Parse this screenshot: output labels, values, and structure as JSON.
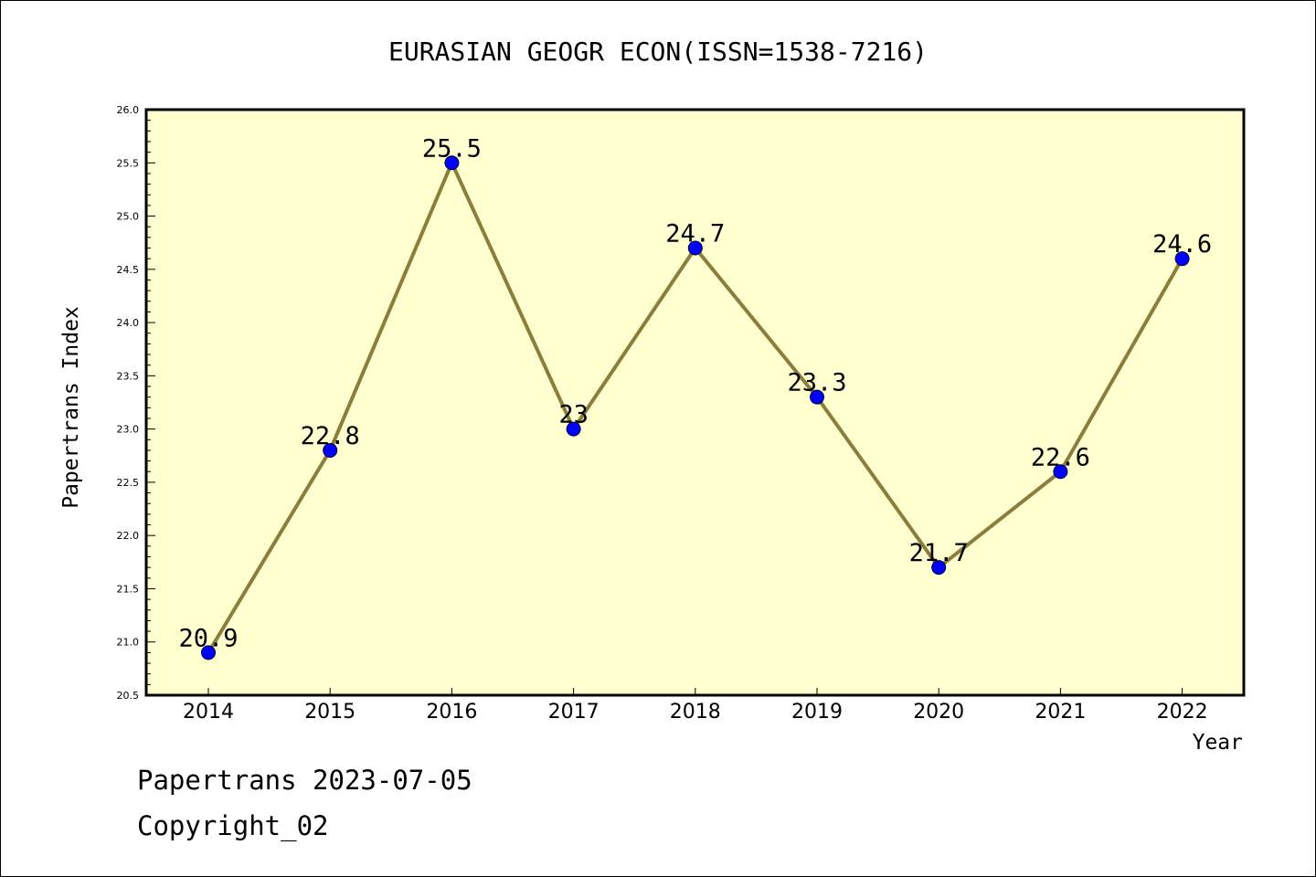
{
  "chart_data": {
    "type": "line",
    "title": "EURASIAN GEOGR ECON(ISSN=1538-7216)",
    "xlabel": "Year",
    "ylabel": "Papertrans Index",
    "categories": [
      "2014",
      "2015",
      "2016",
      "2017",
      "2018",
      "2019",
      "2020",
      "2021",
      "2022"
    ],
    "series": [
      {
        "values": [
          20.9,
          22.8,
          25.5,
          23.0,
          24.7,
          23.3,
          21.7,
          22.6,
          24.6
        ],
        "labels": [
          "20.9",
          "22.8",
          "25.5",
          "23",
          "24.7",
          "23.3",
          "21.7",
          "22.6",
          "24.6"
        ]
      }
    ],
    "ylim": [
      20.5,
      26.0
    ],
    "yticks": [
      "20.5",
      "21.0",
      "21.5",
      "22.0",
      "22.5",
      "23.0",
      "23.5",
      "24.0",
      "24.5",
      "25.0",
      "25.5",
      "26.0"
    ],
    "grid": false,
    "colors": {
      "plot_background": "#ffffd0",
      "line": "#8b7d3a",
      "marker": "#0000ff"
    }
  },
  "footer": {
    "line1": "Papertrans 2023-07-05",
    "line2": "Copyright_02"
  }
}
